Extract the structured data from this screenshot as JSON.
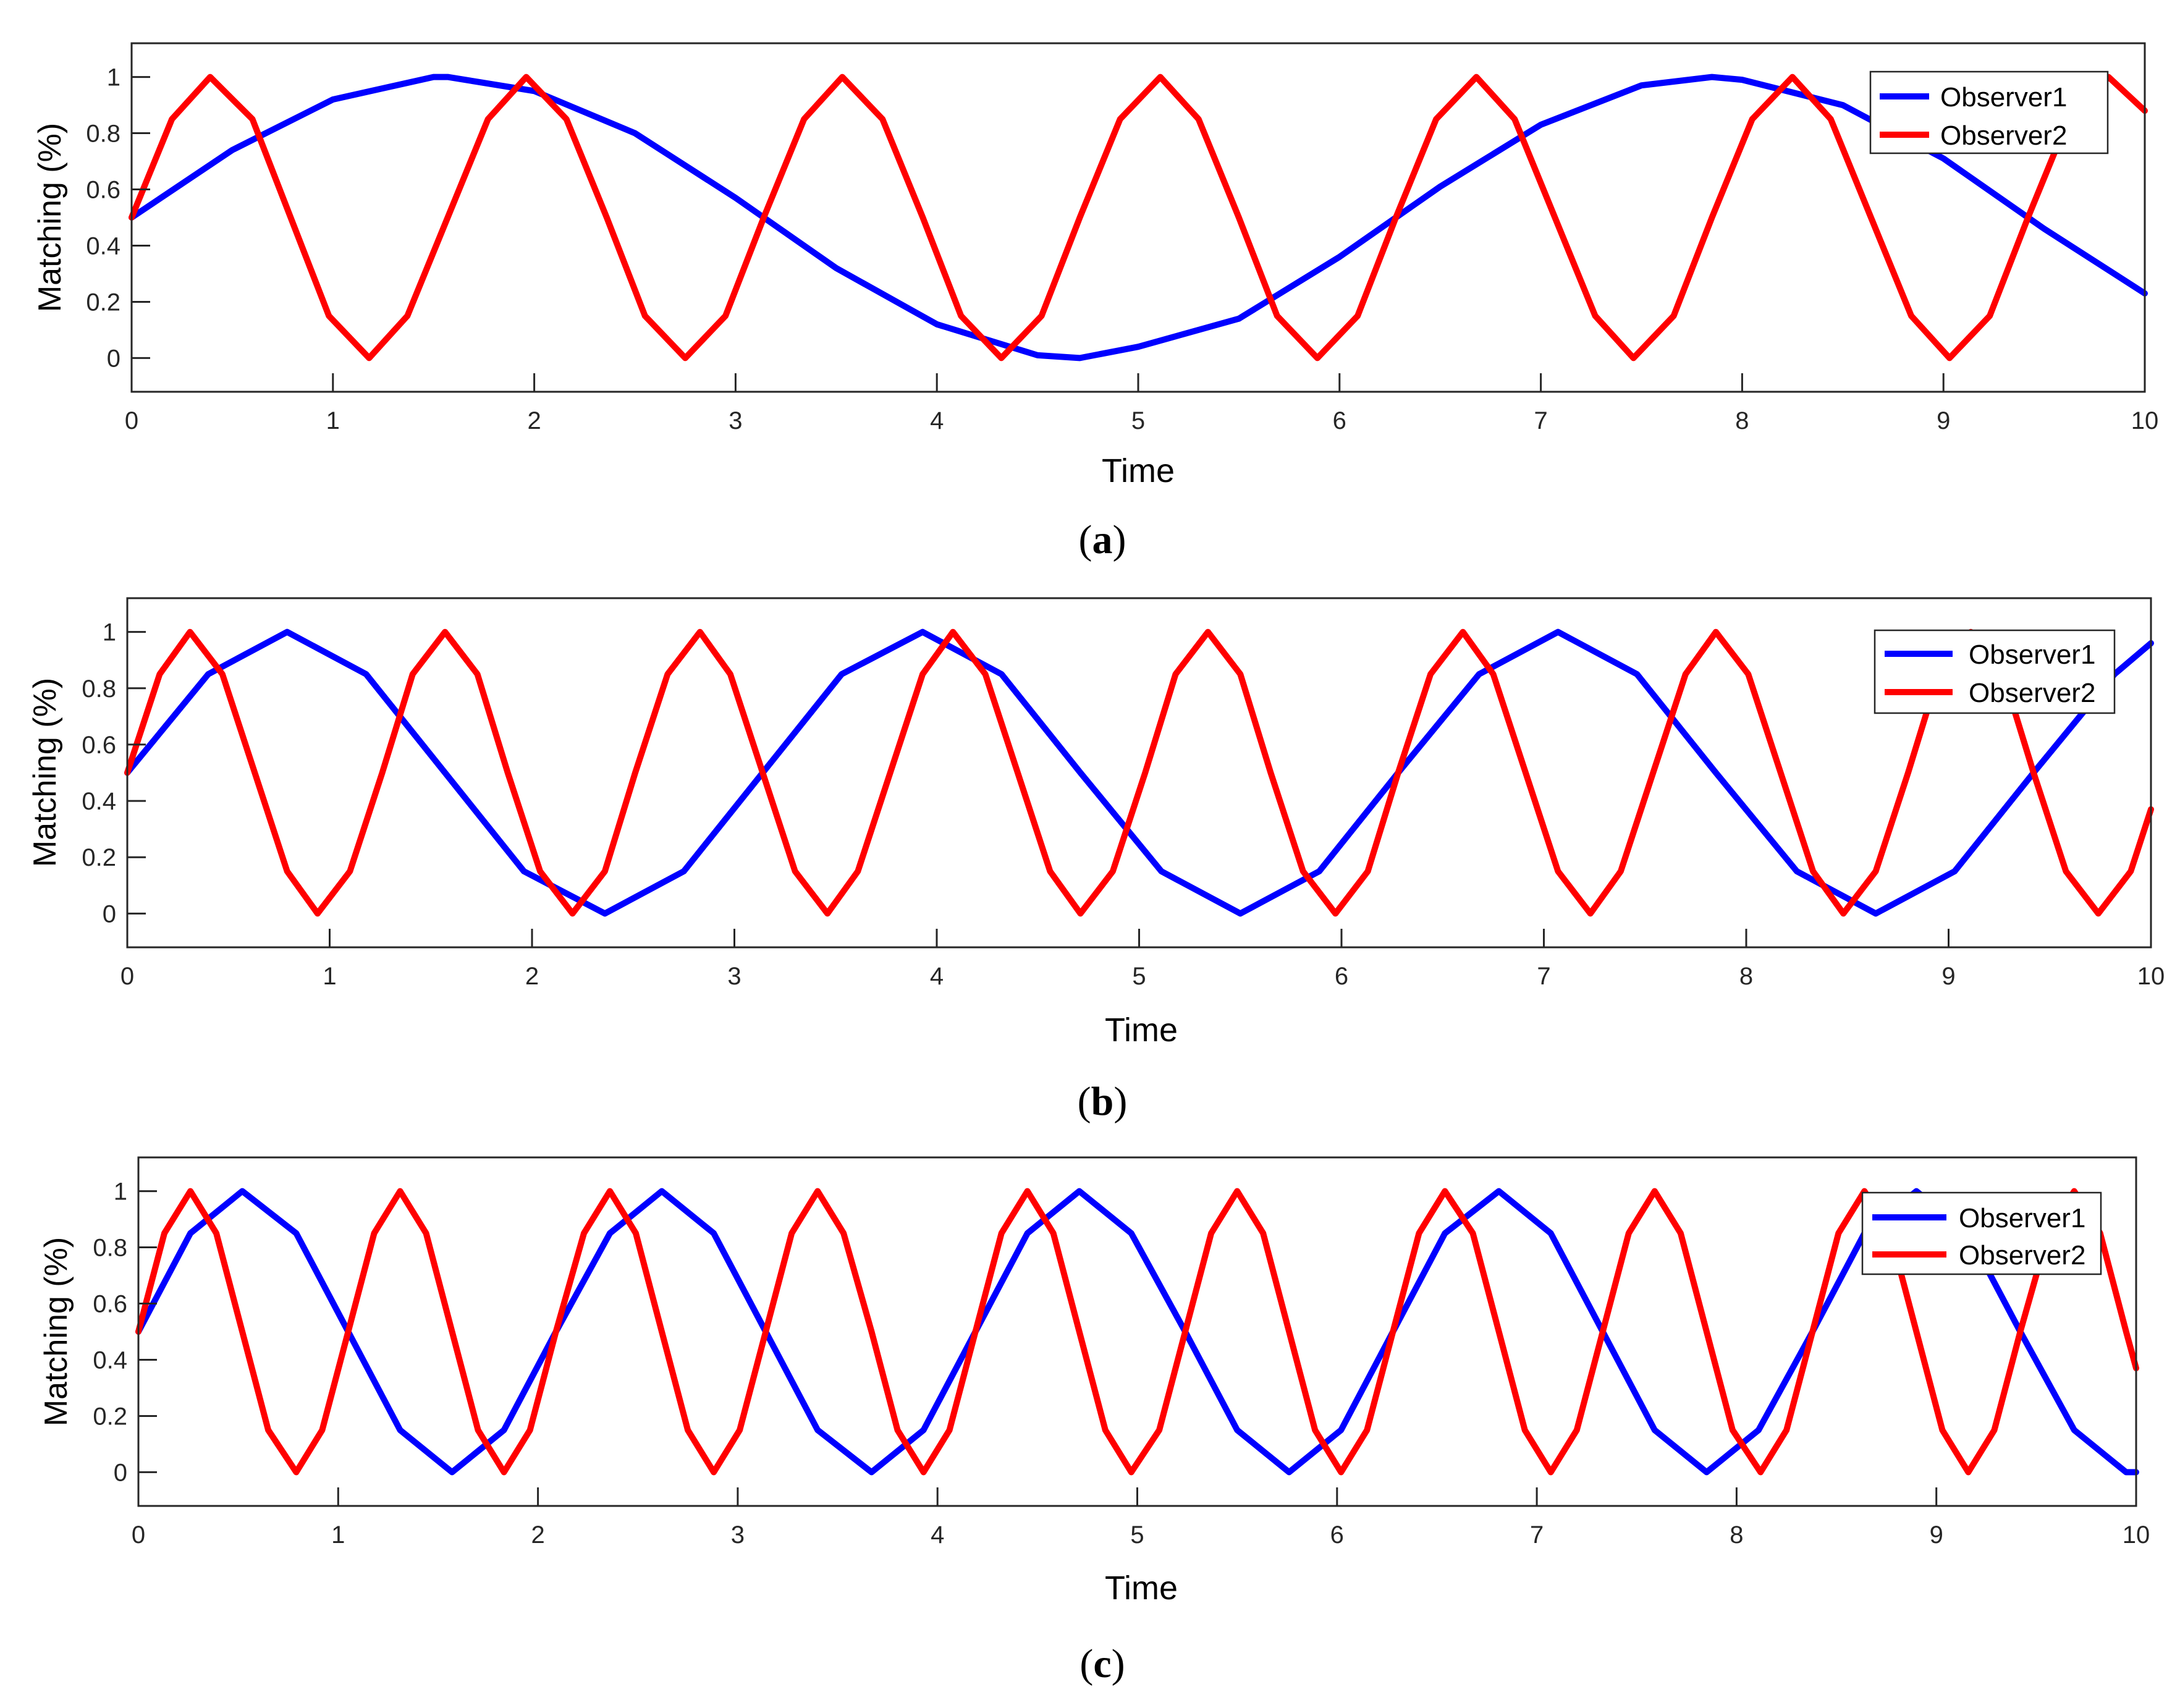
{
  "chart_data": [
    {
      "type": "line",
      "panel_label": "a",
      "xlabel": "Time",
      "ylabel": "Matching (%)",
      "xlim": [
        0,
        10
      ],
      "ylim": [
        -0.12,
        1.12
      ],
      "xticks": [
        0,
        1,
        2,
        3,
        4,
        5,
        6,
        7,
        8,
        9,
        10
      ],
      "xtick_labels": [
        "0",
        "1",
        "2",
        "3",
        "4",
        "5",
        "6",
        "7",
        "8",
        "9",
        "10"
      ],
      "yticks": [
        0,
        0.2,
        0.4,
        0.6,
        0.8,
        1
      ],
      "ytick_labels": [
        "0",
        "0.2",
        "0.4",
        "0.6",
        "0.8",
        "1"
      ],
      "grid": false,
      "legend_position": "top-right",
      "series": [
        {
          "name": "Observer1",
          "color": "#0000ff",
          "x": [
            0,
            0.5,
            1,
            1.5,
            1.57,
            2,
            2.5,
            3,
            3.5,
            4,
            4.5,
            4.71,
            5,
            5.5,
            6,
            6.5,
            7,
            7.5,
            7.85,
            8,
            8.5,
            9,
            9.5,
            10
          ],
          "y": [
            0.5,
            0.74,
            0.92,
            1.0,
            1.0,
            0.95,
            0.8,
            0.57,
            0.32,
            0.12,
            0.01,
            0.0,
            0.04,
            0.14,
            0.36,
            0.61,
            0.83,
            0.97,
            1.0,
            0.99,
            0.9,
            0.71,
            0.46,
            0.23
          ]
        },
        {
          "name": "Observer2",
          "color": "#ff0000",
          "x": [
            0,
            0.2,
            0.39,
            0.6,
            0.79,
            0.98,
            1.18,
            1.37,
            1.57,
            1.77,
            1.96,
            2.16,
            2.36,
            2.55,
            2.75,
            2.95,
            3.14,
            3.34,
            3.53,
            3.73,
            3.93,
            4.12,
            4.32,
            4.52,
            4.71,
            4.91,
            5.11,
            5.3,
            5.5,
            5.69,
            5.89,
            6.09,
            6.28,
            6.48,
            6.68,
            6.87,
            7.07,
            7.27,
            7.46,
            7.66,
            7.85,
            8.05,
            8.25,
            8.44,
            8.64,
            8.84,
            9.03,
            9.23,
            9.42,
            9.62,
            9.82,
            10
          ],
          "y": [
            0.5,
            0.85,
            1.0,
            0.85,
            0.5,
            0.15,
            0.0,
            0.15,
            0.5,
            0.85,
            1.0,
            0.85,
            0.5,
            0.15,
            0.0,
            0.15,
            0.5,
            0.85,
            1.0,
            0.85,
            0.5,
            0.15,
            0.0,
            0.15,
            0.5,
            0.85,
            1.0,
            0.85,
            0.5,
            0.15,
            0.0,
            0.15,
            0.5,
            0.85,
            1.0,
            0.85,
            0.5,
            0.15,
            0.0,
            0.15,
            0.5,
            0.85,
            1.0,
            0.85,
            0.5,
            0.15,
            0.0,
            0.15,
            0.5,
            0.85,
            1.0,
            0.88
          ]
        }
      ]
    },
    {
      "type": "line",
      "panel_label": "b",
      "xlabel": "Time",
      "ylabel": "Matching (%)",
      "xlim": [
        0,
        10
      ],
      "ylim": [
        -0.12,
        1.12
      ],
      "xticks": [
        0,
        1,
        2,
        3,
        4,
        5,
        6,
        7,
        8,
        9,
        10
      ],
      "xtick_labels": [
        "0",
        "1",
        "2",
        "3",
        "4",
        "5",
        "6",
        "7",
        "8",
        "9",
        "10"
      ],
      "yticks": [
        0,
        0.2,
        0.4,
        0.6,
        0.8,
        1
      ],
      "ytick_labels": [
        "0",
        "0.2",
        "0.4",
        "0.6",
        "0.8",
        "1"
      ],
      "grid": false,
      "legend_position": "top-right",
      "series": [
        {
          "name": "Observer1",
          "color": "#0000ff",
          "x": [
            0,
            0.4,
            0.79,
            1.18,
            1.57,
            1.96,
            2.36,
            2.75,
            3.14,
            3.53,
            3.93,
            4.32,
            4.71,
            5.11,
            5.5,
            5.89,
            6.28,
            6.68,
            7.07,
            7.46,
            7.85,
            8.25,
            8.64,
            9.03,
            9.42,
            9.82,
            10
          ],
          "y": [
            0.5,
            0.85,
            1.0,
            0.85,
            0.5,
            0.15,
            0.0,
            0.15,
            0.5,
            0.85,
            1.0,
            0.85,
            0.5,
            0.15,
            0.0,
            0.15,
            0.5,
            0.85,
            1.0,
            0.85,
            0.5,
            0.15,
            0.0,
            0.15,
            0.5,
            0.85,
            0.96
          ]
        },
        {
          "name": "Observer2",
          "color": "#ff0000",
          "x": [
            0,
            0.16,
            0.31,
            0.47,
            0.63,
            0.79,
            0.94,
            1.1,
            1.26,
            1.41,
            1.57,
            1.73,
            1.88,
            2.04,
            2.2,
            2.36,
            2.51,
            2.67,
            2.83,
            2.98,
            3.14,
            3.3,
            3.46,
            3.61,
            3.77,
            3.93,
            4.08,
            4.24,
            4.4,
            4.56,
            4.71,
            4.87,
            5.03,
            5.18,
            5.34,
            5.5,
            5.65,
            5.81,
            5.97,
            6.13,
            6.28,
            6.44,
            6.6,
            6.75,
            6.91,
            7.07,
            7.23,
            7.38,
            7.54,
            7.7,
            7.85,
            8.01,
            8.17,
            8.33,
            8.48,
            8.64,
            8.8,
            8.95,
            9.11,
            9.27,
            9.42,
            9.58,
            9.74,
            9.9,
            10
          ],
          "y": [
            0.5,
            0.85,
            1.0,
            0.85,
            0.5,
            0.15,
            0.0,
            0.15,
            0.5,
            0.85,
            1.0,
            0.85,
            0.5,
            0.15,
            0.0,
            0.15,
            0.5,
            0.85,
            1.0,
            0.85,
            0.5,
            0.15,
            0.0,
            0.15,
            0.5,
            0.85,
            1.0,
            0.85,
            0.5,
            0.15,
            0.0,
            0.15,
            0.5,
            0.85,
            1.0,
            0.85,
            0.5,
            0.15,
            0.0,
            0.15,
            0.5,
            0.85,
            1.0,
            0.85,
            0.5,
            0.15,
            0.0,
            0.15,
            0.5,
            0.85,
            1.0,
            0.85,
            0.5,
            0.15,
            0.0,
            0.15,
            0.5,
            0.85,
            1.0,
            0.85,
            0.5,
            0.15,
            0.0,
            0.15,
            0.37
          ]
        }
      ]
    },
    {
      "type": "line",
      "panel_label": "c",
      "xlabel": "Time",
      "ylabel": "Matching (%)",
      "xlim": [
        0,
        10
      ],
      "ylim": [
        -0.12,
        1.12
      ],
      "xticks": [
        0,
        1,
        2,
        3,
        4,
        5,
        6,
        7,
        8,
        9,
        10
      ],
      "xtick_labels": [
        "0",
        "1",
        "2",
        "3",
        "4",
        "5",
        "6",
        "7",
        "8",
        "9",
        "10"
      ],
      "yticks": [
        0,
        0.2,
        0.4,
        0.6,
        0.8,
        1
      ],
      "ytick_labels": [
        "0",
        "0.2",
        "0.4",
        "0.6",
        "0.8",
        "1"
      ],
      "grid": false,
      "legend_position": "top-right",
      "series": [
        {
          "name": "Observer1",
          "color": "#0000ff",
          "x": [
            0,
            0.26,
            0.52,
            0.79,
            1.05,
            1.31,
            1.57,
            1.83,
            2.09,
            2.36,
            2.62,
            2.88,
            3.14,
            3.4,
            3.67,
            3.93,
            4.19,
            4.45,
            4.71,
            4.97,
            5.24,
            5.5,
            5.76,
            6.02,
            6.28,
            6.54,
            6.81,
            7.07,
            7.33,
            7.59,
            7.85,
            8.11,
            8.38,
            8.64,
            8.9,
            9.16,
            9.42,
            9.69,
            9.95,
            10
          ],
          "y": [
            0.5,
            0.85,
            1.0,
            0.85,
            0.5,
            0.15,
            0.0,
            0.15,
            0.5,
            0.85,
            1.0,
            0.85,
            0.5,
            0.15,
            0.0,
            0.15,
            0.5,
            0.85,
            1.0,
            0.85,
            0.5,
            0.15,
            0.0,
            0.15,
            0.5,
            0.85,
            1.0,
            0.85,
            0.5,
            0.15,
            0.0,
            0.15,
            0.5,
            0.85,
            1.0,
            0.85,
            0.5,
            0.15,
            0.0,
            0.0
          ]
        },
        {
          "name": "Observer2",
          "color": "#ff0000",
          "x": [
            0,
            0.13,
            0.26,
            0.39,
            0.52,
            0.65,
            0.79,
            0.92,
            1.05,
            1.18,
            1.31,
            1.44,
            1.57,
            1.7,
            1.83,
            1.96,
            2.09,
            2.23,
            2.36,
            2.49,
            2.62,
            2.75,
            2.88,
            3.01,
            3.14,
            3.27,
            3.4,
            3.53,
            3.67,
            3.8,
            3.93,
            4.06,
            4.19,
            4.32,
            4.45,
            4.58,
            4.71,
            4.84,
            4.97,
            5.11,
            5.24,
            5.37,
            5.5,
            5.63,
            5.76,
            5.89,
            6.02,
            6.15,
            6.28,
            6.41,
            6.54,
            6.68,
            6.81,
            6.94,
            7.07,
            7.2,
            7.33,
            7.46,
            7.59,
            7.72,
            7.85,
            7.98,
            8.12,
            8.25,
            8.38,
            8.51,
            8.64,
            8.77,
            8.9,
            9.03,
            9.16,
            9.29,
            9.42,
            9.56,
            9.69,
            9.82,
            9.95,
            10
          ],
          "y": [
            0.5,
            0.85,
            1.0,
            0.85,
            0.5,
            0.15,
            0.0,
            0.15,
            0.5,
            0.85,
            1.0,
            0.85,
            0.5,
            0.15,
            0.0,
            0.15,
            0.5,
            0.85,
            1.0,
            0.85,
            0.5,
            0.15,
            0.0,
            0.15,
            0.5,
            0.85,
            1.0,
            0.85,
            0.5,
            0.15,
            0.0,
            0.15,
            0.5,
            0.85,
            1.0,
            0.85,
            0.5,
            0.15,
            0.0,
            0.15,
            0.5,
            0.85,
            1.0,
            0.85,
            0.5,
            0.15,
            0.0,
            0.15,
            0.5,
            0.85,
            1.0,
            0.85,
            0.5,
            0.15,
            0.0,
            0.15,
            0.5,
            0.85,
            1.0,
            0.85,
            0.5,
            0.15,
            0.0,
            0.15,
            0.5,
            0.85,
            1.0,
            0.85,
            0.5,
            0.15,
            0.0,
            0.15,
            0.5,
            0.85,
            1.0,
            0.85,
            0.5,
            0.37
          ]
        }
      ]
    }
  ],
  "colors": {
    "axis": "#262626",
    "background": "#ffffff"
  }
}
